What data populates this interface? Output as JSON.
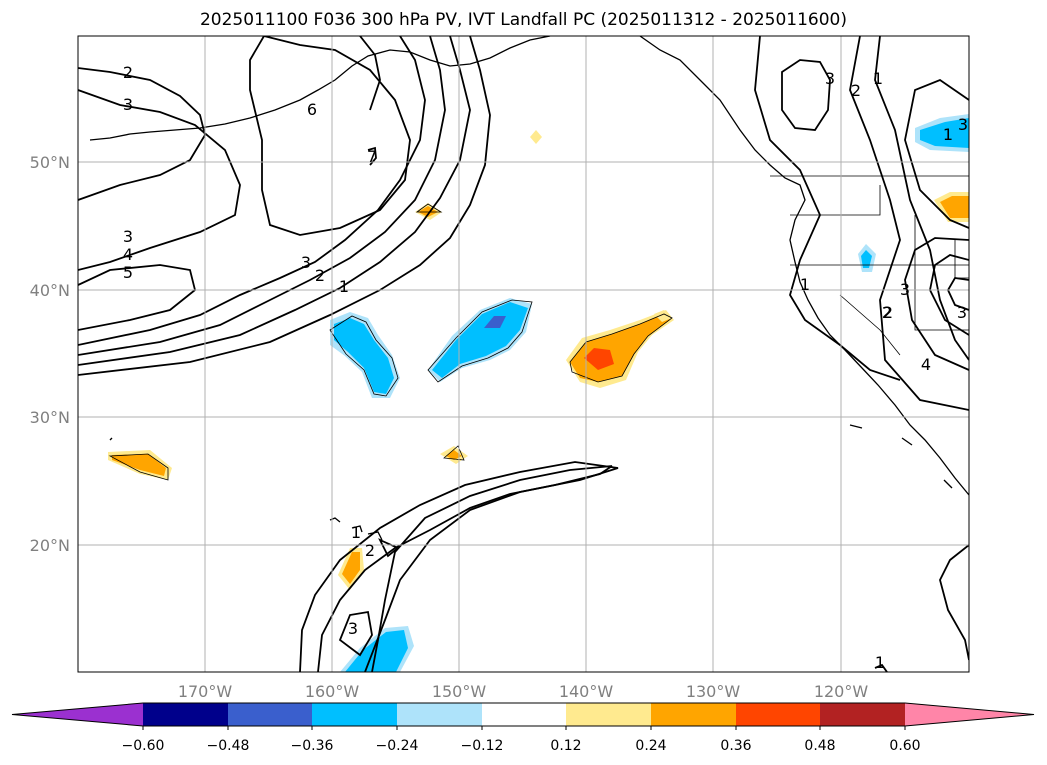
{
  "title": "2025011100 F036 300 hPa PV, IVT Landfall PC (2025011312 - 2025011600)",
  "longitude_ticks": [
    "170°W",
    "160°W",
    "150°W",
    "140°W",
    "130°W",
    "120°W"
  ],
  "latitude_ticks": [
    "50°N",
    "40°N",
    "30°N",
    "20°N"
  ],
  "colorbar": {
    "colors": [
      "#9b30d0",
      "#00008b",
      "#3a5fcd",
      "#00bfff",
      "#aee3fa",
      "#ffffff",
      "#ffea8f",
      "#ffa500",
      "#ff4500",
      "#b22222",
      "#ff85a8"
    ],
    "labels": [
      "−0.60",
      "−0.48",
      "−0.36",
      "−0.24",
      "−0.12",
      "0.12",
      "0.24",
      "0.36",
      "0.48",
      "0.60"
    ]
  },
  "contour_labels": [
    "2",
    "3",
    "6",
    "7",
    "3",
    "4",
    "5",
    "3",
    "2",
    "1",
    "3",
    "2",
    "1",
    "1",
    "3",
    "2",
    "1",
    "3",
    "3",
    "2",
    "4",
    "1",
    "2",
    "3",
    "1"
  ],
  "shading_colors": {
    "negative_light": "#aee3fa",
    "negative_mid": "#00bfff",
    "negative_dark": "#3a5fcd",
    "positive_light": "#ffea8f",
    "positive_mid": "#ffa500",
    "positive_dark": "#ff4500"
  }
}
